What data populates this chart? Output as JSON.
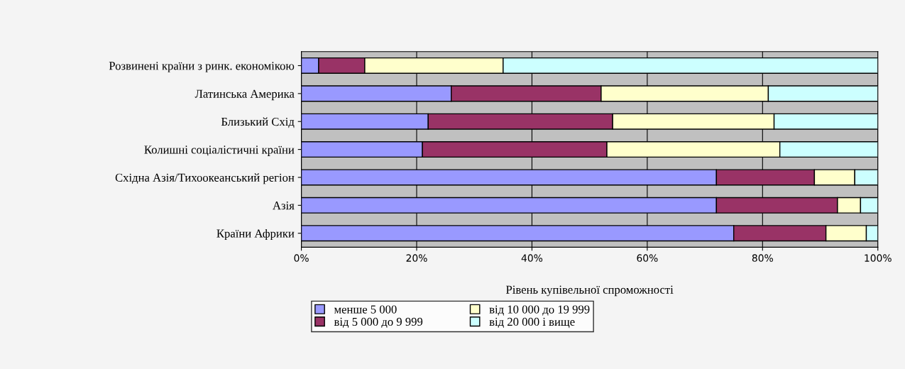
{
  "chart_data": {
    "type": "bar",
    "orientation": "horizontal",
    "stacked": true,
    "categories": [
      "Розвинені країни з ринк. економікою",
      "Латинська Америка",
      "Близький Схід",
      "Колишні соціалістичні країни",
      "Східна Азія/Тихоокеанський регіон",
      "Азія",
      "Країни Африки"
    ],
    "series": [
      {
        "name": "менше 5 000",
        "color": "#9999ff",
        "values": [
          3,
          26,
          22,
          21,
          72,
          72,
          75
        ]
      },
      {
        "name": "від 5 000 до 9 999",
        "color": "#993366",
        "values": [
          8,
          26,
          32,
          32,
          17,
          21,
          16
        ]
      },
      {
        "name": "від 10 000 до 19 999",
        "color": "#ffffcc",
        "values": [
          24,
          29,
          28,
          30,
          7,
          4,
          7
        ]
      },
      {
        "name": "від 20 000 і вище",
        "color": "#ccffff",
        "values": [
          65,
          19,
          18,
          17,
          4,
          3,
          2
        ]
      }
    ],
    "xlabel": "Рівень купівельної спроможності",
    "xlim": [
      0,
      100
    ],
    "xticks": [
      {
        "value": 0,
        "label": "0%"
      },
      {
        "value": 20,
        "label": "20%"
      },
      {
        "value": 40,
        "label": "40%"
      },
      {
        "value": 60,
        "label": "60%"
      },
      {
        "value": 80,
        "label": "80%"
      },
      {
        "value": 100,
        "label": "100%"
      }
    ],
    "grid": "x",
    "legend": "bottom"
  }
}
